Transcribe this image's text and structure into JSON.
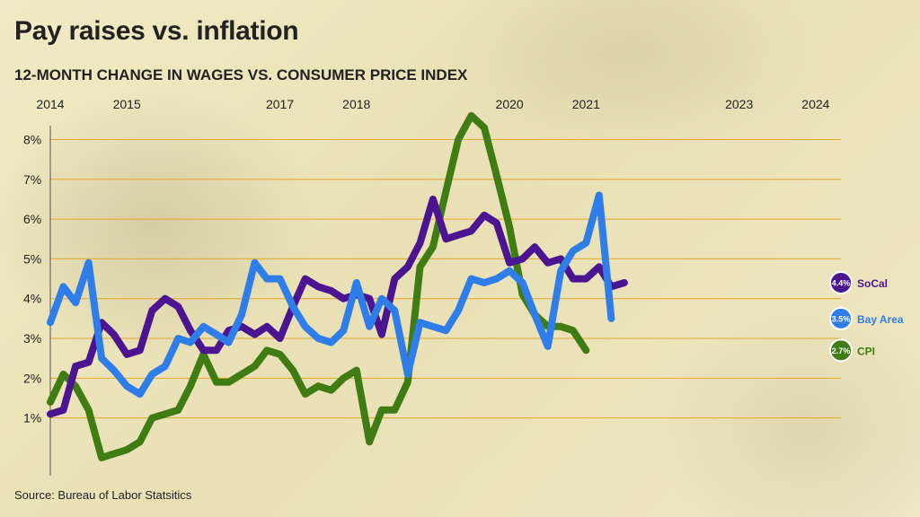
{
  "title": "Pay raises vs. inflation",
  "subtitle": "12-MONTH CHANGE IN WAGES VS. CONSUMER PRICE INDEX",
  "source": "Source: Bureau of Labor Statsitics",
  "colors": {
    "socal": "#4b1591",
    "bay_area": "#2f7de8",
    "cpi": "#3f7d14",
    "gridline": "#e2a92c"
  },
  "chart_data": {
    "type": "line",
    "x_tick_labels": [
      "2014",
      "2015",
      "2017",
      "2018",
      "2020",
      "2021",
      "2023",
      "2024"
    ],
    "x_tick_positions": [
      2014.0,
      2015.0,
      2017.0,
      2018.0,
      2020.0,
      2021.0,
      2023.0,
      2024.0
    ],
    "xlim": [
      2014.0,
      2024.33
    ],
    "ylim": [
      0,
      8.8
    ],
    "y_ticks": [
      1,
      2,
      3,
      4,
      5,
      6,
      7,
      8
    ],
    "y_tick_labels": [
      "1%",
      "2%",
      "3%",
      "4%",
      "5%",
      "6%",
      "7%",
      "8%"
    ],
    "grid": true,
    "x": [
      2014.0,
      2014.17,
      2014.33,
      2014.5,
      2014.67,
      2014.83,
      2015.0,
      2015.17,
      2015.33,
      2015.5,
      2015.67,
      2015.83,
      2016.0,
      2016.17,
      2016.33,
      2016.5,
      2016.67,
      2016.83,
      2017.0,
      2017.17,
      2017.33,
      2017.5,
      2017.67,
      2017.83,
      2018.0,
      2018.17,
      2018.33,
      2018.5,
      2018.67,
      2018.83,
      2019.0,
      2019.17,
      2019.33,
      2019.5,
      2019.67,
      2019.83,
      2020.0,
      2020.17,
      2020.33,
      2020.5,
      2020.67,
      2020.83,
      2021.0,
      2021.17,
      2021.33,
      2021.5,
      2021.67,
      2021.83,
      2022.0,
      2022.17,
      2022.33,
      2022.5,
      2022.67,
      2022.83,
      2023.0,
      2023.17,
      2023.33,
      2023.5,
      2023.67,
      2023.83,
      2024.0,
      2024.17,
      2024.33
    ],
    "series": [
      {
        "name": "SoCal",
        "end_label": "SoCal",
        "end_value_label": "4.4%",
        "values": [
          1.1,
          1.2,
          2.3,
          2.4,
          3.4,
          3.1,
          2.6,
          2.7,
          3.7,
          4.0,
          3.8,
          3.2,
          2.7,
          2.7,
          3.2,
          3.3,
          3.1,
          3.3,
          3.0,
          3.8,
          4.5,
          4.3,
          4.2,
          4.0,
          4.1,
          4.0,
          3.1,
          4.5,
          4.8,
          5.4,
          6.5,
          5.5,
          5.6,
          5.7,
          6.1,
          5.9,
          4.9,
          5.0,
          5.3,
          4.9,
          5.0,
          4.5,
          4.5,
          4.8,
          4.3,
          4.4,
          4.4,
          4.4,
          4.4,
          4.4,
          4.4,
          4.4,
          4.4,
          4.4,
          4.4,
          4.4,
          4.4,
          4.4,
          4.4,
          4.4,
          4.4,
          4.4,
          4.4
        ]
      },
      {
        "name": "Bay Area",
        "end_label": "Bay Area",
        "end_value_label": "3.5%",
        "values": [
          3.4,
          4.3,
          3.9,
          4.9,
          2.5,
          2.2,
          1.8,
          1.6,
          2.1,
          2.3,
          3.0,
          2.9,
          3.3,
          3.1,
          2.9,
          3.6,
          4.9,
          4.5,
          4.5,
          3.8,
          3.3,
          3.0,
          2.9,
          3.2,
          4.4,
          3.3,
          4.0,
          3.7,
          2.1,
          3.4,
          3.3,
          3.2,
          3.7,
          4.5,
          4.4,
          4.5,
          4.7,
          4.4,
          3.6,
          2.8,
          4.7,
          5.2,
          5.4,
          6.6,
          3.5,
          3.5,
          3.5,
          3.5,
          3.5,
          3.5,
          3.5,
          3.5,
          3.5,
          3.5,
          3.5,
          3.5,
          3.5,
          3.5,
          3.5,
          3.5,
          3.5,
          3.5,
          3.5
        ]
      },
      {
        "name": "CPI",
        "end_label": "CPI",
        "end_value_label": "2.7%",
        "values": [
          1.4,
          2.1,
          1.8,
          1.2,
          0.0,
          0.1,
          0.2,
          0.4,
          1.0,
          1.1,
          1.2,
          1.8,
          2.6,
          1.9,
          1.9,
          2.1,
          2.3,
          2.7,
          2.6,
          2.2,
          1.6,
          1.8,
          1.7,
          2.0,
          2.2,
          0.4,
          1.2,
          1.2,
          1.9,
          4.8,
          5.3,
          6.7,
          8.0,
          8.6,
          8.3,
          7.1,
          5.8,
          4.1,
          3.6,
          3.3,
          3.3,
          3.2,
          2.7,
          2.7,
          2.7,
          2.7,
          2.7,
          2.7,
          2.7,
          2.7,
          2.7,
          2.7,
          2.7,
          2.7,
          2.7,
          2.7,
          2.7,
          2.7,
          2.7,
          2.7,
          2.7,
          2.7,
          2.7
        ]
      }
    ]
  }
}
